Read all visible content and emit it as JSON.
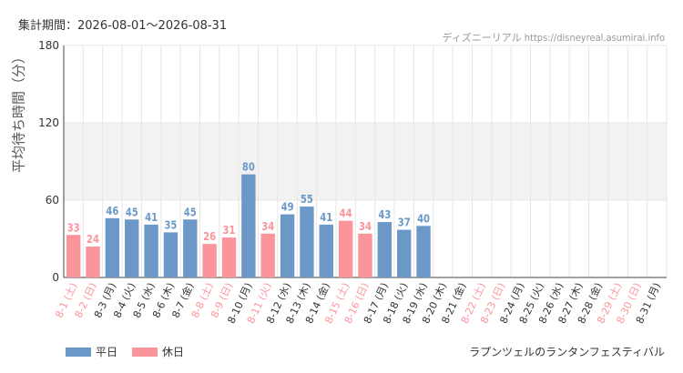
{
  "header": {
    "period_label": "集計期間：2026-08-01〜2026-08-31",
    "site_label": "ディズニーリアル https://disneyreal.asumirai.info"
  },
  "footer": {
    "attraction_name": "ラプンツェルのランタンフェスティバル"
  },
  "colors": {
    "weekday": "#6b98c7",
    "holiday": "#fb949b",
    "band": "#f2f2f2",
    "grid": "#e6e6e6"
  },
  "chart_data": {
    "type": "bar",
    "ylabel": "平均待ち時間（分）",
    "ylim": [
      0,
      180
    ],
    "yticks": [
      0,
      60,
      120,
      180
    ],
    "band_range": [
      60,
      120
    ],
    "legend": [
      {
        "key": "weekday",
        "label": "平日"
      },
      {
        "key": "holiday",
        "label": "休日"
      }
    ],
    "categories": [
      "8-1 (土)",
      "8-2 (日)",
      "8-3 (月)",
      "8-4 (火)",
      "8-5 (水)",
      "8-6 (木)",
      "8-7 (金)",
      "8-8 (土)",
      "8-9 (日)",
      "8-10 (月)",
      "8-11 (火)",
      "8-12 (水)",
      "8-13 (木)",
      "8-14 (金)",
      "8-15 (土)",
      "8-16 (日)",
      "8-17 (月)",
      "8-18 (火)",
      "8-19 (水)",
      "8-20 (木)",
      "8-21 (金)",
      "8-22 (土)",
      "8-23 (日)",
      "8-24 (月)",
      "8-25 (火)",
      "8-26 (水)",
      "8-27 (木)",
      "8-28 (金)",
      "8-29 (土)",
      "8-30 (日)",
      "8-31 (月)"
    ],
    "day_type": [
      "holiday",
      "holiday",
      "weekday",
      "weekday",
      "weekday",
      "weekday",
      "weekday",
      "holiday",
      "holiday",
      "weekday",
      "holiday",
      "weekday",
      "weekday",
      "weekday",
      "holiday",
      "holiday",
      "weekday",
      "weekday",
      "weekday",
      "weekday",
      "weekday",
      "holiday",
      "holiday",
      "weekday",
      "weekday",
      "weekday",
      "weekday",
      "weekday",
      "holiday",
      "holiday",
      "weekday"
    ],
    "values": [
      33,
      24,
      46,
      45,
      41,
      35,
      45,
      26,
      31,
      80,
      34,
      49,
      55,
      41,
      44,
      34,
      43,
      37,
      40,
      null,
      null,
      null,
      null,
      null,
      null,
      null,
      null,
      null,
      null,
      null,
      null
    ]
  }
}
